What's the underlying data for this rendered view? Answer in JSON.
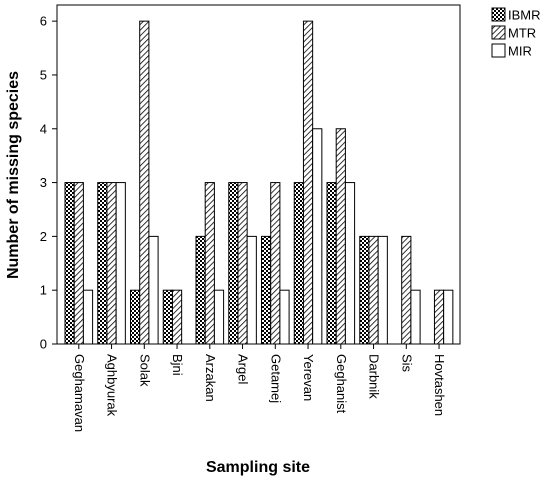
{
  "chart_data": {
    "type": "bar",
    "title": "",
    "xlabel": "Sampling site",
    "ylabel": "Number of missing species",
    "ylim": [
      0,
      6.3
    ],
    "yticks": [
      0,
      1,
      2,
      3,
      4,
      5,
      6
    ],
    "grid": false,
    "legend_position": "top-right",
    "categories": [
      "Geghamavan",
      "Aghbyurak",
      "Solak",
      "Bjni",
      "Arzakan",
      "Argel",
      "Getamej",
      "Yerevan",
      "Geghanist",
      "Darbnik",
      "Sis",
      "Hovtashen"
    ],
    "series": [
      {
        "name": "IBMR",
        "pattern": "checker",
        "values": [
          3,
          3,
          1,
          1,
          2,
          3,
          2,
          3,
          3,
          2,
          0,
          0
        ]
      },
      {
        "name": "MTR",
        "pattern": "diagonal",
        "values": [
          3,
          3,
          6,
          1,
          3,
          3,
          3,
          6,
          4,
          2,
          2,
          1
        ]
      },
      {
        "name": "MIR",
        "pattern": "empty",
        "values": [
          1,
          3,
          2,
          0,
          1,
          2,
          1,
          4,
          3,
          2,
          1,
          1
        ]
      }
    ]
  }
}
